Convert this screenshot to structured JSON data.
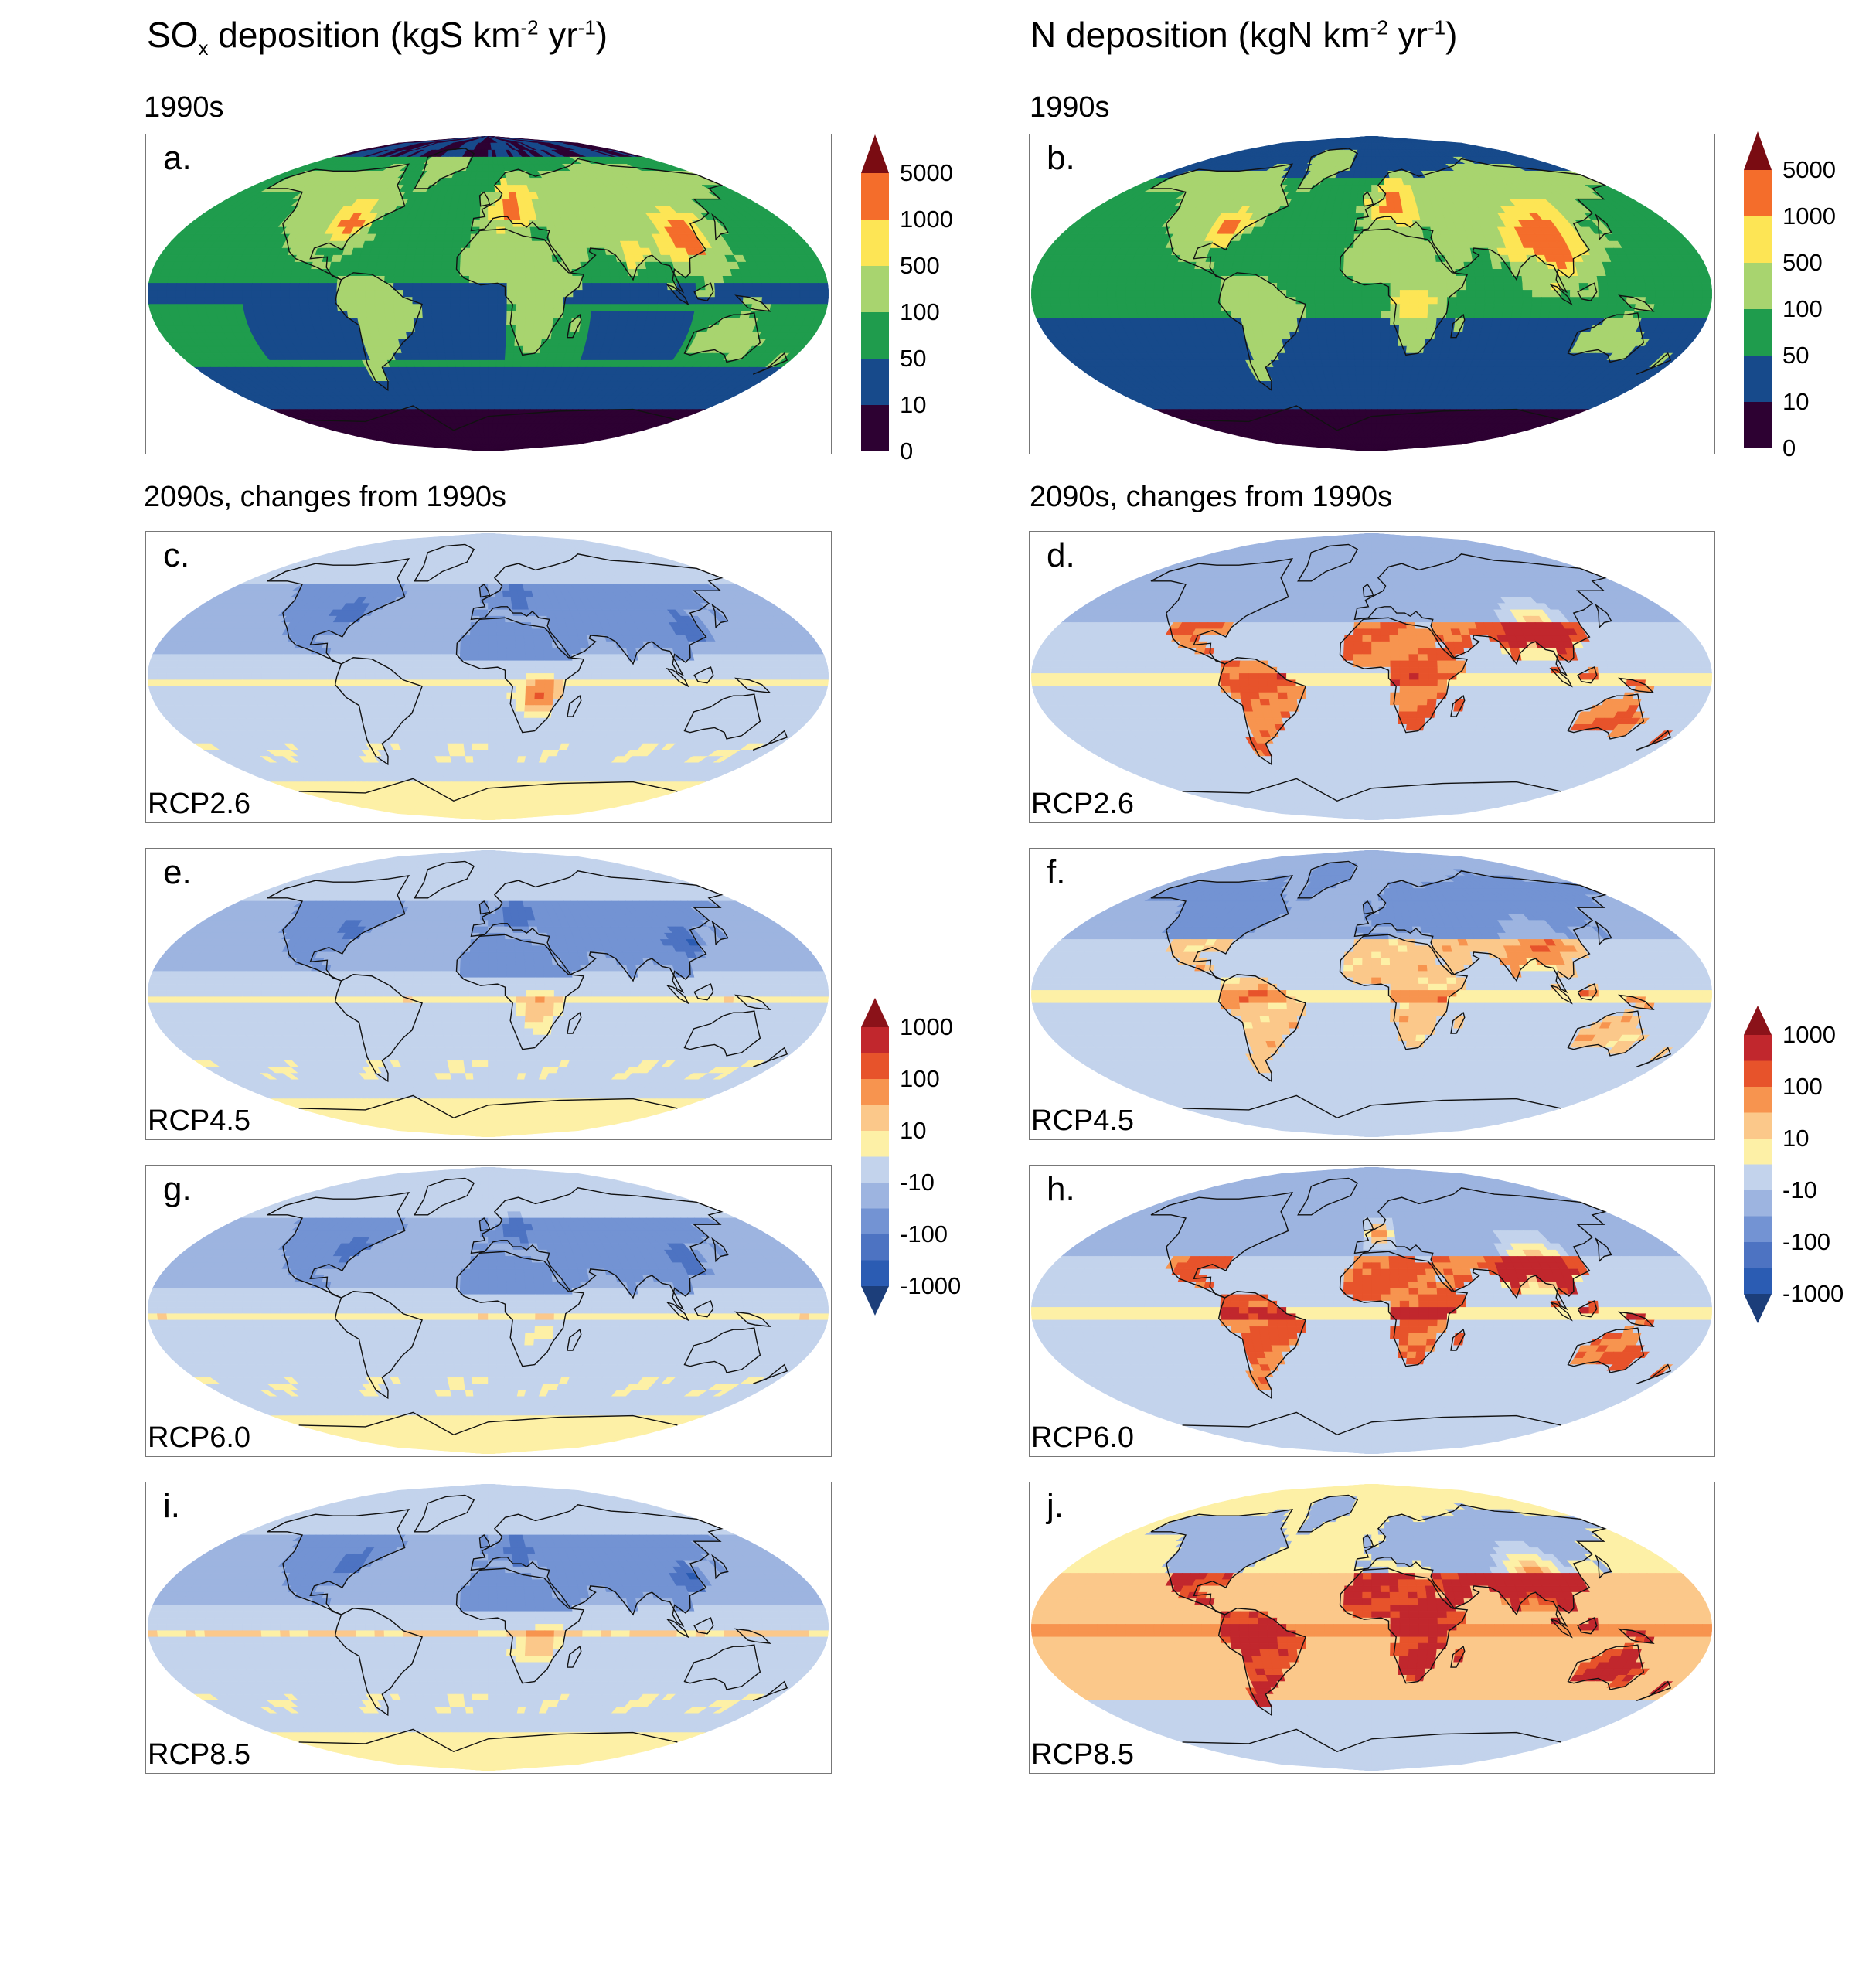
{
  "titles": {
    "left": {
      "main": "SO",
      "sub": "x",
      "rest": " deposition (kgS km",
      "exp1": "-2",
      "mid": " yr",
      "exp2": "-1",
      "end": ")"
    },
    "right": {
      "main": "N deposition (kgN km",
      "exp1": "-2",
      "mid": " yr",
      "exp2": "-1",
      "end": ")"
    }
  },
  "sections": {
    "left_top": "1990s",
    "right_top": "1990s",
    "left_changes": "2090s, changes from 1990s",
    "right_changes": "2090s, changes from 1990s"
  },
  "panels": [
    {
      "id": "a",
      "label": "a.",
      "scenario": "",
      "palette": "abs",
      "field": "sox_1990s"
    },
    {
      "id": "b",
      "label": "b.",
      "scenario": "",
      "palette": "abs",
      "field": "n_1990s"
    },
    {
      "id": "c",
      "label": "c.",
      "scenario": "RCP2.6",
      "palette": "diff",
      "field": "sox_change"
    },
    {
      "id": "d",
      "label": "d.",
      "scenario": "RCP2.6",
      "palette": "diff",
      "field": "n_change"
    },
    {
      "id": "e",
      "label": "e.",
      "scenario": "RCP4.5",
      "palette": "diff",
      "field": "sox_change"
    },
    {
      "id": "f",
      "label": "f.",
      "scenario": "RCP4.5",
      "palette": "diff",
      "field": "n_change"
    },
    {
      "id": "g",
      "label": "g.",
      "scenario": "RCP6.0",
      "palette": "diff",
      "field": "sox_change"
    },
    {
      "id": "h",
      "label": "h.",
      "scenario": "RCP6.0",
      "palette": "diff",
      "field": "n_change"
    },
    {
      "id": "i",
      "label": "i.",
      "scenario": "RCP8.5",
      "palette": "diff",
      "field": "sox_change"
    },
    {
      "id": "j",
      "label": "j.",
      "scenario": "RCP8.5",
      "palette": "diff",
      "field": "n_change"
    }
  ],
  "colorbars": {
    "abs": {
      "ticks": [
        "5000",
        "1000",
        "500",
        "100",
        "50",
        "10",
        "0"
      ],
      "colors": [
        "#3b0008",
        "#f46d2b",
        "#fde555",
        "#a8d46f",
        "#1f9c4d",
        "#174a8b",
        "#2d0132"
      ],
      "extend_color": "#7a0c12"
    },
    "diff": {
      "ticks": [
        "1000",
        "100",
        "10",
        "-10",
        "-100",
        "-1000"
      ],
      "colors": [
        "#c1272d",
        "#e7532b",
        "#f7944f",
        "#fbc88a",
        "#fdf0a6",
        "#c3d3ec",
        "#9db4e0",
        "#7393d3",
        "#4d73c2",
        "#2b5cb3"
      ],
      "extend_top": "#8b1219",
      "extend_bottom": "#1c3e7a"
    }
  }
}
